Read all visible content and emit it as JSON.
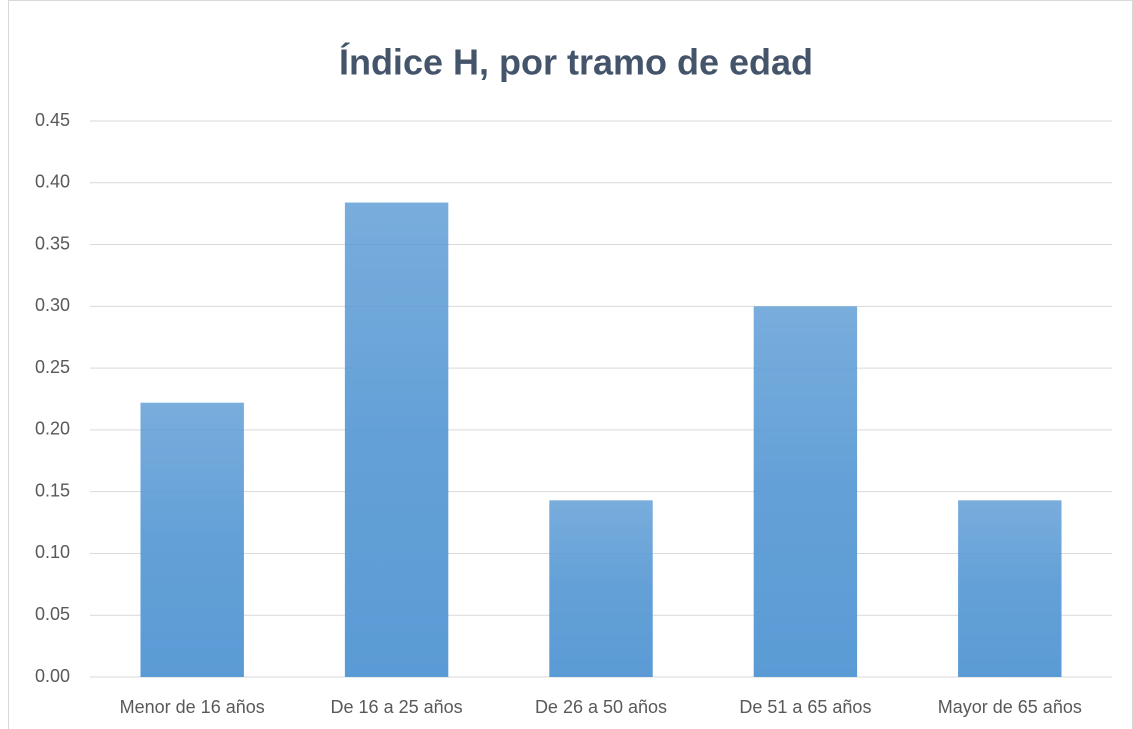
{
  "chart_data": {
    "type": "bar",
    "title": "Índice H, por tramo de edad",
    "categories": [
      "Menor de 16 años",
      "De 16 a 25 años",
      "De 26 a 50 años",
      "De 51 a 65 años",
      "Mayor de 65 años"
    ],
    "values": [
      0.222,
      0.384,
      0.143,
      0.3,
      0.143
    ],
    "color": "#5b9bd5",
    "ylim": [
      0,
      0.45
    ],
    "yticks": [
      {
        "value": 0,
        "label": "0.00"
      },
      0.05,
      {
        "value": 0.1,
        "label": "0.10"
      },
      0.15,
      {
        "value": 0.2,
        "label": "0.20"
      },
      0.25,
      {
        "value": 0.3,
        "label": "0.30"
      },
      0.35,
      {
        "value": 0.4,
        "label": "0.40"
      },
      0.45
    ],
    "grid": true
  }
}
